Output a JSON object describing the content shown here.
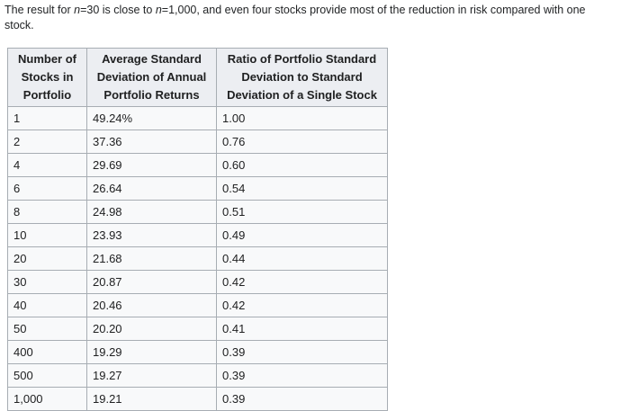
{
  "intro": {
    "segments": [
      {
        "text": "The result for ",
        "italic": false
      },
      {
        "text": "n",
        "italic": true
      },
      {
        "text": "=30 is close to ",
        "italic": false
      },
      {
        "text": "n",
        "italic": true
      },
      {
        "text": "=1,000, and even four stocks provide most of the reduction in risk compared with one stock.",
        "italic": false
      }
    ]
  },
  "table": {
    "headers": [
      "Number of Stocks in Portfolio",
      "Average Standard Deviation of Annual Portfolio Returns",
      "Ratio of Portfolio Standard Deviation to Standard Deviation of a Single Stock"
    ],
    "rows": [
      [
        "1",
        "49.24%",
        "1.00"
      ],
      [
        "2",
        "37.36",
        "0.76"
      ],
      [
        "4",
        "29.69",
        "0.60"
      ],
      [
        "6",
        "26.64",
        "0.54"
      ],
      [
        "8",
        "24.98",
        "0.51"
      ],
      [
        "10",
        "23.93",
        "0.49"
      ],
      [
        "20",
        "21.68",
        "0.44"
      ],
      [
        "30",
        "20.87",
        "0.42"
      ],
      [
        "40",
        "20.46",
        "0.42"
      ],
      [
        "50",
        "20.20",
        "0.41"
      ],
      [
        "400",
        "19.29",
        "0.39"
      ],
      [
        "500",
        "19.27",
        "0.39"
      ],
      [
        "1,000",
        "19.21",
        "0.39"
      ]
    ]
  },
  "colors": {
    "page_background": "#ffffff",
    "table_border": "#a7adb3",
    "header_background": "#eceef2",
    "cell_background": "#f8f9fa",
    "text": "#222426"
  }
}
